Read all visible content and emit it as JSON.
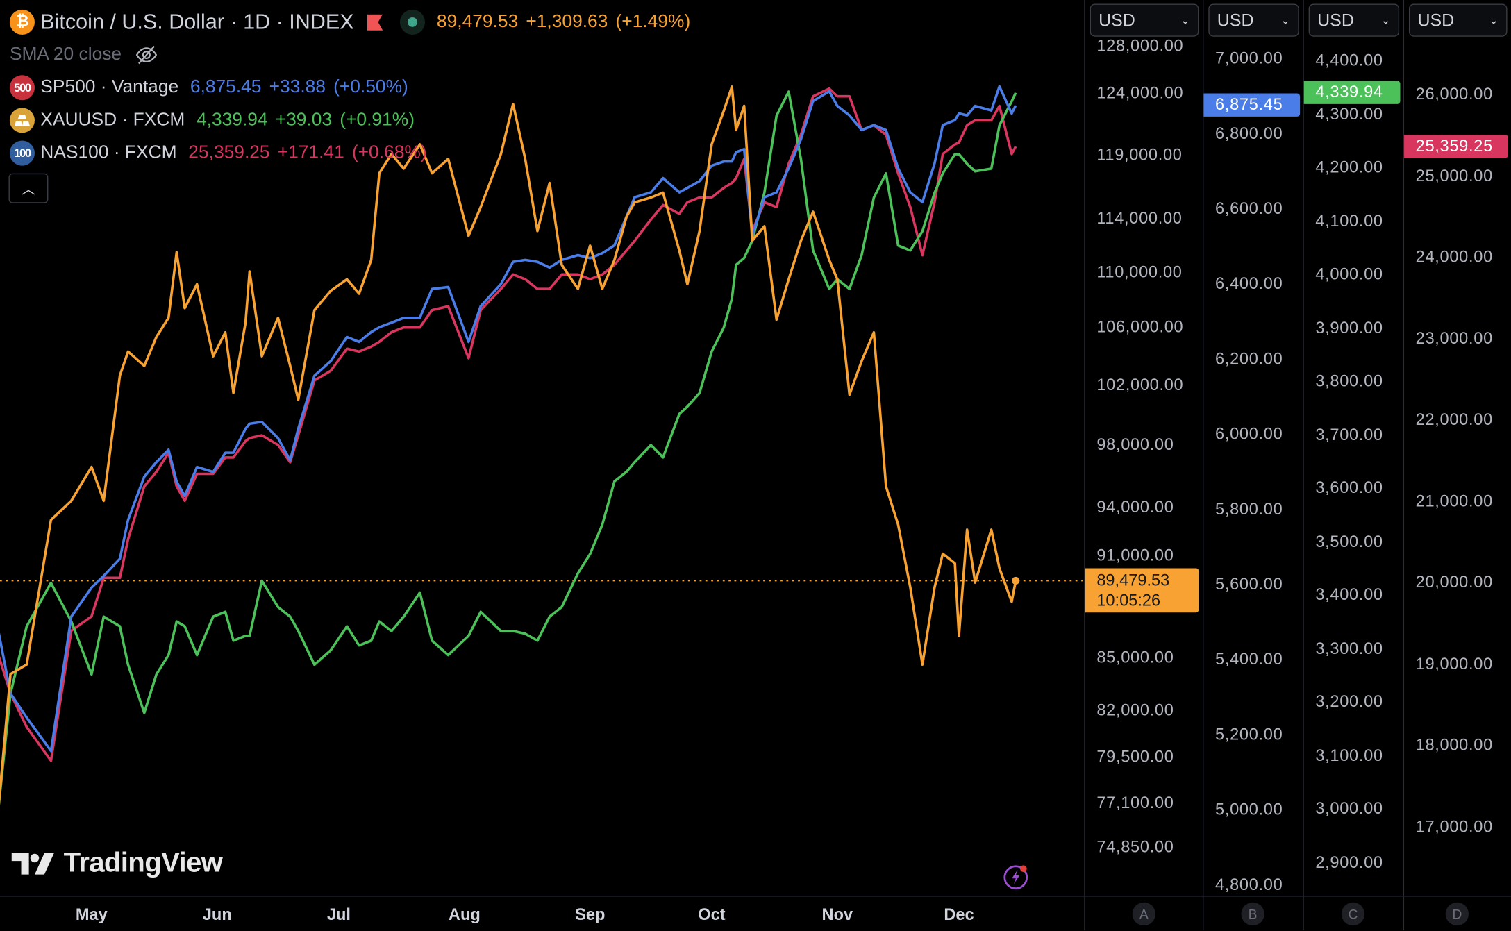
{
  "header": {
    "symbol_title": "Bitcoin / U.S. Dollar · 1D · INDEX",
    "price": "89,479.53",
    "change": "+1,309.63",
    "change_pct": "(+1.49%)",
    "icon": "bitcoin-icon",
    "color": "#f7a233"
  },
  "indicator": {
    "label": "SMA 20 close",
    "icon": "eye-off-icon"
  },
  "compare": [
    {
      "icon_text": "500",
      "icon_color": "#c8323c",
      "name": "SP500 · Vantage",
      "price": "6,875.45",
      "change": "+33.88",
      "change_pct": "(+0.50%)",
      "color": "#4a7de8"
    },
    {
      "icon_text": "gold",
      "icon_color": "#d9a33a",
      "name": "XAUUSD · FXCM",
      "price": "4,339.94",
      "change": "+39.03",
      "change_pct": "(+0.91%)",
      "color": "#4cc15a"
    },
    {
      "icon_text": "100",
      "icon_color": "#2f5d9e",
      "name": "NAS100 · FXCM",
      "price": "25,359.25",
      "change": "+171.41",
      "change_pct": "(+0.68%)",
      "color": "#d8365f"
    }
  ],
  "price_line": {
    "price": "89,479.53",
    "countdown": "10:05:26",
    "value": 89479.53
  },
  "axes": [
    {
      "letter": "A",
      "currency": "USD",
      "scale": "log",
      "range": [
        72470,
        132000
      ],
      "ticks": [
        "128,000.00",
        "124,000.00",
        "119,000.00",
        "114,000.00",
        "110,000.00",
        "106,000.00",
        "102,000.00",
        "98,000.00",
        "94,000.00",
        "91,000.00",
        "85,000.00",
        "82,000.00",
        "79,500.00",
        "77,100.00",
        "74,850.00"
      ]
    },
    {
      "letter": "B",
      "currency": "USD",
      "scale": "linear",
      "range": [
        4772,
        7156
      ],
      "ticks": [
        "7,000.00",
        "6,800.00",
        "6,600.00",
        "6,400.00",
        "6,200.00",
        "6,000.00",
        "5,800.00",
        "5,600.00",
        "5,400.00",
        "5,200.00",
        "5,000.00",
        "4,800.00"
      ],
      "last": {
        "label": "6,875.45",
        "value": 6875.45,
        "color": "#4a7de8"
      }
    },
    {
      "letter": "C",
      "currency": "USD",
      "scale": "linear",
      "range": [
        2838,
        4513.5
      ],
      "ticks": [
        "4,400.00",
        "4,300.00",
        "4,200.00",
        "4,100.00",
        "4,000.00",
        "3,900.00",
        "3,800.00",
        "3,700.00",
        "3,600.00",
        "3,500.00",
        "3,400.00",
        "3,300.00",
        "3,200.00",
        "3,100.00",
        "3,000.00",
        "2,900.00"
      ],
      "last": {
        "label": "4,339.94",
        "value": 4339.94,
        "color": "#4cc15a"
      }
    },
    {
      "letter": "D",
      "currency": "USD",
      "scale": "linear",
      "range": [
        16157,
        27159
      ],
      "ticks": [
        "26,000.00",
        "25,000.00",
        "24,000.00",
        "23,000.00",
        "22,000.00",
        "21,000.00",
        "20,000.00",
        "19,000.00",
        "18,000.00",
        "17,000.00"
      ],
      "last": {
        "label": "25,359.25",
        "value": 25359.25,
        "color": "#d8365f"
      }
    }
  ],
  "time_axis": {
    "months": [
      "May",
      "Jun",
      "Jul",
      "Aug",
      "Sep",
      "Oct",
      "Nov",
      "Dec"
    ]
  },
  "logo": {
    "text": "TradingView"
  },
  "chart_data": {
    "type": "line",
    "xlabel": "",
    "ylabel": "",
    "grid": false,
    "legend": "top-left",
    "x": [
      "Apr 8",
      "Apr 11",
      "Apr 15",
      "Apr 21",
      "Apr 26",
      "May 1",
      "May 4",
      "May 8",
      "May 10",
      "May 14",
      "May 17",
      "May 20",
      "May 22",
      "May 24",
      "May 27",
      "May 31",
      "Jun 3",
      "Jun 5",
      "Jun 8",
      "Jun 9",
      "Jun 12",
      "Jun 16",
      "Jun 19",
      "Jun 21",
      "Jun 25",
      "Jun 29",
      "Jul 3",
      "Jul 6",
      "Jul 9",
      "Jul 11",
      "Jul 14",
      "Jul 17",
      "Jul 21",
      "Jul 24",
      "Jul 28",
      "Aug 2",
      "Aug 5",
      "Aug 10",
      "Aug 13",
      "Aug 16",
      "Aug 19",
      "Aug 22",
      "Aug 25",
      "Aug 29",
      "Sep 1",
      "Sep 4",
      "Sep 7",
      "Sep 10",
      "Sep 12",
      "Sep 16",
      "Sep 19",
      "Sep 23",
      "Sep 25",
      "Sep 28",
      "Oct 1",
      "Oct 4",
      "Oct 6",
      "Oct 7",
      "Oct 9",
      "Oct 11",
      "Oct 14",
      "Oct 17",
      "Oct 20",
      "Oct 23",
      "Oct 26",
      "Oct 30",
      "Nov 1",
      "Nov 4",
      "Nov 7",
      "Nov 10",
      "Nov 13",
      "Nov 16",
      "Nov 19",
      "Nov 22",
      "Nov 25",
      "Nov 27",
      "Nov 30",
      "Dec 1",
      "Dec 3",
      "Dec 5",
      "Dec 9",
      "Dec 11",
      "Dec 14",
      "Dec 15"
    ],
    "series": [
      {
        "name": "Bitcoin / U.S. Dollar",
        "axis": "A",
        "color": "#f7a233",
        "values": [
          76800,
          84060,
          84600,
          93200,
          94400,
          96560,
          94400,
          102660,
          104320,
          103320,
          105340,
          106700,
          111490,
          107400,
          109130,
          103990,
          105670,
          101470,
          106370,
          110060,
          103990,
          106700,
          103320,
          101010,
          107250,
          108650,
          109490,
          108440,
          110920,
          117540,
          119070,
          117910,
          119840,
          117540,
          118680,
          112720,
          114910,
          119070,
          123120,
          118680,
          113080,
          116780,
          110550,
          108790,
          111980,
          108790,
          110920,
          114180,
          115280,
          115650,
          116030,
          111620,
          109130,
          113080,
          119840,
          122570,
          124560,
          121000,
          122970,
          112350,
          113450,
          106570,
          109490,
          112350,
          114550,
          110920,
          109490,
          101350,
          103650,
          105670,
          95310,
          92900,
          89080,
          84600,
          89080,
          91110,
          90530,
          86250,
          92590,
          89370,
          92590,
          90230,
          88230,
          89479.53
        ]
      },
      {
        "name": "SP500 · Vantage",
        "axis": "B",
        "color": "#4a7de8",
        "values": [
          5477,
          5310,
          5246,
          5157,
          5515,
          5592,
          5623,
          5669,
          5772,
          5887,
          5926,
          5959,
          5874,
          5836,
          5913,
          5900,
          5951,
          5951,
          6015,
          6028,
          6033,
          5990,
          5931,
          6015,
          6156,
          6195,
          6259,
          6246,
          6272,
          6285,
          6297,
          6310,
          6310,
          6387,
          6392,
          6246,
          6341,
          6400,
          6459,
          6464,
          6459,
          6444,
          6464,
          6477,
          6469,
          6482,
          6503,
          6580,
          6631,
          6644,
          6682,
          6644,
          6656,
          6674,
          6715,
          6726,
          6726,
          6751,
          6759,
          6528,
          6631,
          6644,
          6708,
          6785,
          6887,
          6913,
          6874,
          6849,
          6810,
          6823,
          6810,
          6708,
          6644,
          6618,
          6721,
          6823,
          6836,
          6854,
          6849,
          6874,
          6862,
          6926,
          6854,
          6875.45
        ]
      },
      {
        "name": "XAUUSD · FXCM",
        "axis": "C",
        "color": "#4cc15a",
        "values": [
          3000,
          3216,
          3342,
          3423,
          3351,
          3252,
          3360,
          3342,
          3270,
          3180,
          3252,
          3288,
          3351,
          3342,
          3288,
          3360,
          3369,
          3315,
          3324,
          3324,
          3427,
          3378,
          3360,
          3333,
          3270,
          3297,
          3342,
          3306,
          3315,
          3351,
          3333,
          3360,
          3405,
          3315,
          3288,
          3324,
          3369,
          3333,
          3333,
          3328,
          3315,
          3360,
          3378,
          3441,
          3477,
          3532,
          3613,
          3631,
          3649,
          3681,
          3658,
          3739,
          3753,
          3778,
          3856,
          3901,
          3955,
          4018,
          4031,
          4063,
          4153,
          4297,
          4342,
          4216,
          4045,
          3973,
          3991,
          3973,
          4036,
          4144,
          4189,
          4054,
          4045,
          4081,
          4153,
          4189,
          4225,
          4225,
          4207,
          4193,
          4198,
          4279,
          4324,
          4339.94
        ]
      },
      {
        "name": "NAS100 · FXCM",
        "axis": "D",
        "color": "#d8365f",
        "values": [
          19115,
          18642,
          18228,
          17814,
          19411,
          19588,
          20061,
          20061,
          20535,
          21185,
          21363,
          21599,
          21185,
          21008,
          21339,
          21339,
          21540,
          21540,
          21741,
          21777,
          21812,
          21694,
          21481,
          21812,
          22486,
          22605,
          22877,
          22841,
          22901,
          22960,
          23078,
          23137,
          23137,
          23350,
          23397,
          22759,
          23350,
          23610,
          23788,
          23729,
          23610,
          23610,
          23788,
          23788,
          23729,
          23788,
          23906,
          24084,
          24202,
          24462,
          24640,
          24533,
          24675,
          24734,
          24734,
          24852,
          24912,
          24971,
          25207,
          24320,
          24675,
          24616,
          25148,
          25503,
          25976,
          26071,
          25976,
          25976,
          25562,
          25621,
          25503,
          25030,
          24616,
          24024,
          24675,
          25267,
          25385,
          25408,
          25621,
          25681,
          25681,
          25858,
          25267,
          25359.25
        ]
      }
    ]
  }
}
